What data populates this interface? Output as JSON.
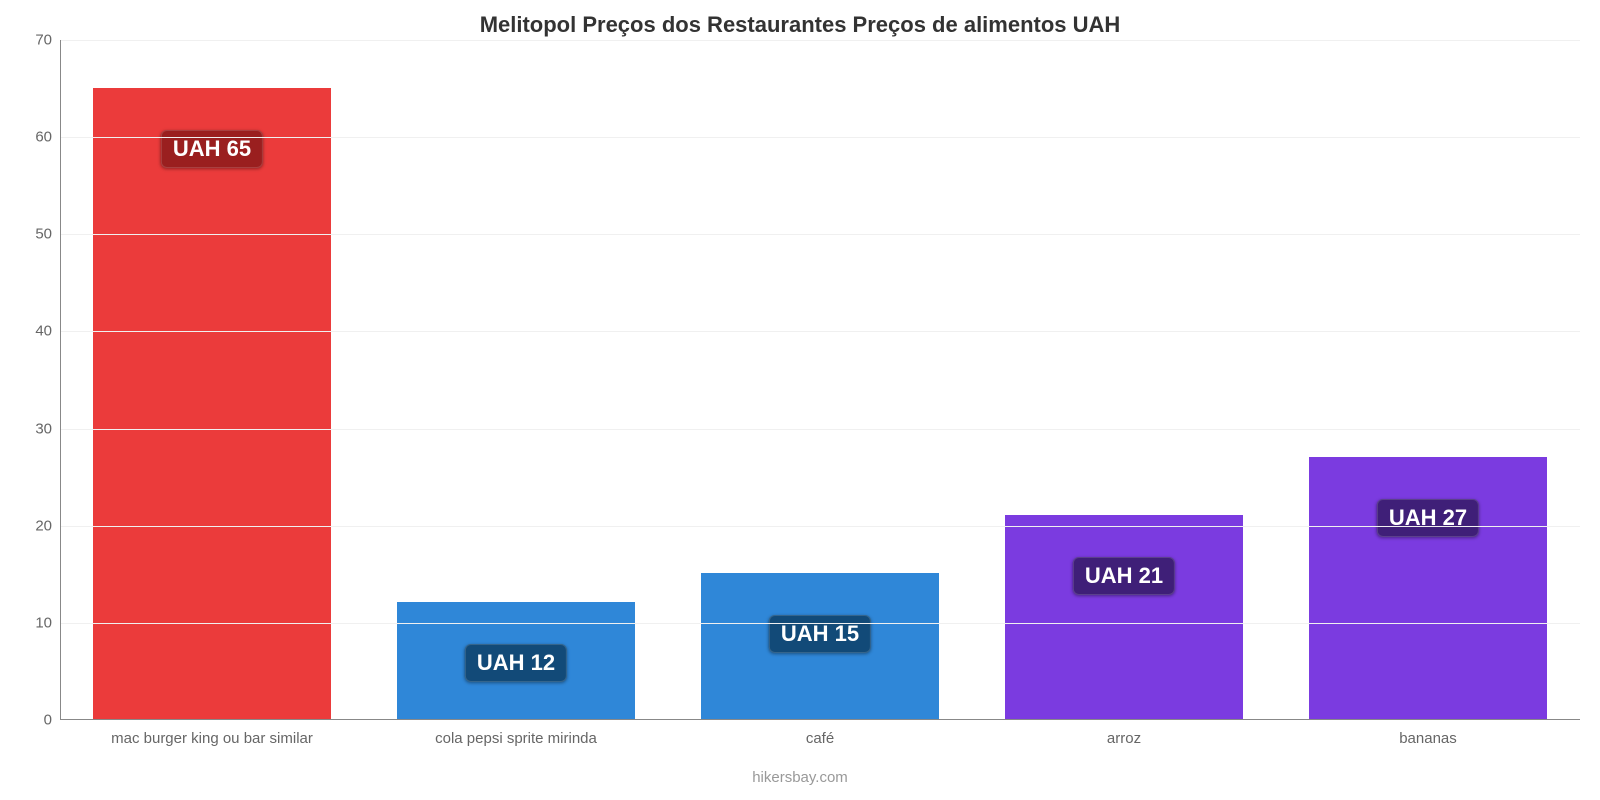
{
  "chart": {
    "type": "bar",
    "title": "Melitopol Preços dos Restaurantes Preços de alimentos UAH",
    "title_fontsize": 22,
    "title_color": "#333333",
    "background_color": "#ffffff",
    "grid_color": "#f0f0f0",
    "axis_color": "#888888",
    "tick_label_color": "#666666",
    "tick_fontsize": 15,
    "attribution": "hikersbay.com",
    "attribution_color": "#999999",
    "attribution_fontsize": 15,
    "ylim": [
      0,
      70
    ],
    "ytick_step": 10,
    "yticks": [
      0,
      10,
      20,
      30,
      40,
      50,
      60,
      70
    ],
    "bar_width_ratio": 0.78,
    "categories": [
      "mac burger king ou bar similar",
      "cola pepsi sprite mirinda",
      "café",
      "arroz",
      "bananas"
    ],
    "values": [
      65,
      12,
      15,
      21,
      27
    ],
    "value_labels": [
      "UAH 65",
      "UAH 12",
      "UAH 15",
      "UAH 21",
      "UAH 27"
    ],
    "bar_colors": [
      "#eb3b3b",
      "#2f87d8",
      "#2f87d8",
      "#7b3be0",
      "#7b3be0"
    ],
    "label_bg_colors": [
      "#9a1f1f",
      "#124a78",
      "#124a78",
      "#3f1f78",
      "#3f1f78"
    ],
    "label_text_color": "#ffffff",
    "label_fontsize": 22
  }
}
